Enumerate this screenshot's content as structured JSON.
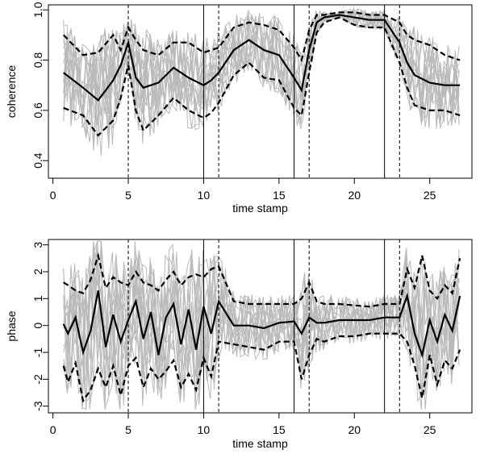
{
  "chart_data": [
    {
      "type": "line",
      "xlabel": "time stamp",
      "ylabel": "coherence",
      "xlim": [
        -0.3,
        27.8
      ],
      "ylim": [
        0.33,
        1.02
      ],
      "xticks": [
        0,
        5,
        10,
        15,
        20,
        25
      ],
      "yticks": [
        0.4,
        0.6,
        0.8,
        1.0
      ],
      "ytick_labels": [
        "0.4",
        "0.6",
        "0.8",
        "1.0"
      ],
      "vlines_solid": [
        10,
        16,
        22
      ],
      "vlines_dashed": [
        5,
        11,
        17,
        23
      ],
      "x": [
        0.7,
        2.0,
        3.0,
        4.0,
        4.5,
        5.0,
        5.5,
        6.0,
        7.0,
        8.0,
        9.0,
        10.0,
        10.5,
        11.0,
        12.0,
        13.0,
        14.0,
        15.0,
        16.0,
        16.5,
        17.0,
        17.5,
        18.0,
        19.0,
        20.0,
        21.0,
        22.0,
        23.0,
        23.5,
        24.0,
        25.0,
        26.0,
        27.0
      ],
      "mean": [
        0.75,
        0.69,
        0.64,
        0.72,
        0.78,
        0.87,
        0.73,
        0.69,
        0.71,
        0.77,
        0.73,
        0.7,
        0.72,
        0.75,
        0.84,
        0.88,
        0.84,
        0.82,
        0.73,
        0.68,
        0.84,
        0.95,
        0.97,
        0.98,
        0.97,
        0.96,
        0.96,
        0.87,
        0.79,
        0.74,
        0.71,
        0.7,
        0.7
      ],
      "upper": [
        0.9,
        0.82,
        0.83,
        0.9,
        0.84,
        0.93,
        0.88,
        0.84,
        0.82,
        0.87,
        0.87,
        0.83,
        0.84,
        0.85,
        0.93,
        0.95,
        0.94,
        0.92,
        0.85,
        0.8,
        0.92,
        0.98,
        0.98,
        0.99,
        0.99,
        0.98,
        0.98,
        0.95,
        0.9,
        0.88,
        0.86,
        0.82,
        0.8
      ],
      "lower": [
        0.61,
        0.58,
        0.5,
        0.56,
        0.65,
        0.78,
        0.6,
        0.52,
        0.58,
        0.65,
        0.6,
        0.57,
        0.59,
        0.63,
        0.74,
        0.79,
        0.73,
        0.72,
        0.61,
        0.58,
        0.75,
        0.91,
        0.95,
        0.97,
        0.94,
        0.93,
        0.93,
        0.79,
        0.69,
        0.62,
        0.6,
        0.6,
        0.58
      ]
    },
    {
      "type": "line",
      "xlabel": "time stamp",
      "ylabel": "phase",
      "xlim": [
        -0.3,
        27.8
      ],
      "ylim": [
        -3.25,
        3.2
      ],
      "xticks": [
        0,
        5,
        10,
        15,
        20,
        25
      ],
      "yticks": [
        -3,
        -2,
        -1,
        0,
        1,
        2,
        3
      ],
      "ytick_labels": [
        "-3",
        "-2",
        "-1",
        "0",
        "1",
        "2",
        "3"
      ],
      "vlines_solid": [
        10,
        16,
        22
      ],
      "vlines_dashed": [
        5,
        11,
        17,
        23
      ],
      "x": [
        0.7,
        1.0,
        1.5,
        2.0,
        2.5,
        3.0,
        3.5,
        4.0,
        4.5,
        5.0,
        5.5,
        6.0,
        6.5,
        7.0,
        7.5,
        8.0,
        8.5,
        9.0,
        9.5,
        10.0,
        10.5,
        11.0,
        12.0,
        13.0,
        14.0,
        15.0,
        16.0,
        16.5,
        17.0,
        17.5,
        18.0,
        19.0,
        20.0,
        21.0,
        22.0,
        23.0,
        23.5,
        24.0,
        24.5,
        25.0,
        25.5,
        26.0,
        26.5,
        27.0
      ],
      "mean": [
        0.05,
        -0.3,
        0.3,
        -1.0,
        -0.2,
        1.3,
        -0.8,
        0.4,
        -0.6,
        0.2,
        0.9,
        -0.5,
        0.5,
        -1.1,
        0.3,
        0.8,
        -0.7,
        0.6,
        -0.9,
        0.7,
        -0.3,
        0.9,
        0.0,
        0.0,
        -0.1,
        0.1,
        0.15,
        -0.3,
        0.3,
        0.1,
        0.1,
        0.2,
        0.2,
        0.2,
        0.3,
        0.3,
        1.1,
        -0.3,
        -1.1,
        0.2,
        -0.6,
        0.4,
        -0.2,
        1.1
      ],
      "upper": [
        1.6,
        1.5,
        1.3,
        1.2,
        1.7,
        2.6,
        1.4,
        1.8,
        1.6,
        1.5,
        2.0,
        1.6,
        1.5,
        1.3,
        1.7,
        2.0,
        1.5,
        1.8,
        1.9,
        1.8,
        2.1,
        2.2,
        0.9,
        0.8,
        0.8,
        0.8,
        0.8,
        1.0,
        1.6,
        0.9,
        0.8,
        0.8,
        0.75,
        0.7,
        0.8,
        0.8,
        2.1,
        1.4,
        2.6,
        1.3,
        1.0,
        1.5,
        1.2,
        2.5
      ],
      "lower": [
        -1.5,
        -2.1,
        -1.4,
        -2.8,
        -2.4,
        -1.6,
        -2.3,
        -1.5,
        -2.6,
        -1.5,
        -1.2,
        -2.3,
        -1.6,
        -2.0,
        -1.7,
        -1.3,
        -2.3,
        -1.8,
        -2.4,
        -1.2,
        -1.9,
        -0.6,
        -0.7,
        -0.8,
        -0.9,
        -0.6,
        -0.6,
        -2.0,
        -1.1,
        -0.5,
        -0.6,
        -0.4,
        -0.4,
        -0.3,
        -0.3,
        -0.3,
        -0.6,
        -1.5,
        -2.7,
        -1.1,
        -2.2,
        -1.3,
        -1.6,
        -0.9
      ]
    }
  ]
}
